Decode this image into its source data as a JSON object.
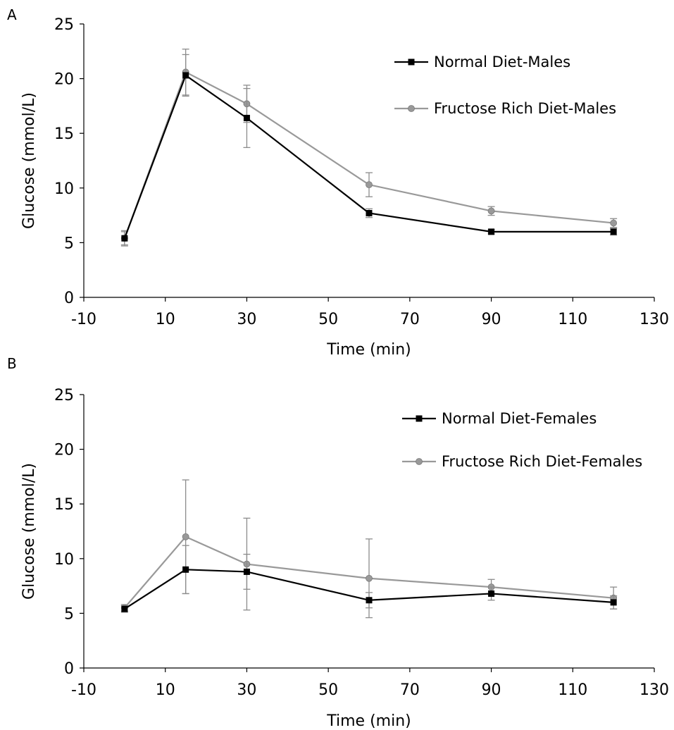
{
  "chart_data": [
    {
      "panel_label": "A",
      "type": "line",
      "xlabel": "Time (min)",
      "ylabel": "Glucose (mmol/L)",
      "xlim": [
        -10,
        130
      ],
      "ylim": [
        0,
        25
      ],
      "x_ticks": [
        -10,
        10,
        30,
        50,
        70,
        90,
        110,
        130
      ],
      "y_ticks": [
        0,
        5,
        10,
        15,
        20,
        25
      ],
      "grid": false,
      "legend_position": "top-right",
      "series": [
        {
          "name": "Normal Diet-Males",
          "color": "#000000",
          "marker": "square",
          "x": [
            0,
            15,
            30,
            60,
            90,
            120
          ],
          "y": [
            5.4,
            20.3,
            16.4,
            7.7,
            6.0,
            6.0
          ],
          "err": [
            0.7,
            1.9,
            2.7,
            0.4,
            0.2,
            0.3
          ]
        },
        {
          "name": "Fructose Rich Diet-Males",
          "color": "#999999",
          "marker": "circle",
          "x": [
            0,
            15,
            30,
            60,
            90,
            120
          ],
          "y": [
            5.4,
            20.6,
            17.7,
            10.3,
            7.9,
            6.8
          ],
          "err": [
            0.6,
            2.1,
            1.7,
            1.1,
            0.4,
            0.4
          ]
        }
      ]
    },
    {
      "panel_label": "B",
      "type": "line",
      "xlabel": "Time (min)",
      "ylabel": "Glucose (mmol/L)",
      "xlim": [
        -10,
        130
      ],
      "ylim": [
        0,
        25
      ],
      "x_ticks": [
        -10,
        10,
        30,
        50,
        70,
        90,
        110,
        130
      ],
      "y_ticks": [
        0,
        5,
        10,
        15,
        20,
        25
      ],
      "grid": false,
      "legend_position": "top-right",
      "series": [
        {
          "name": "Normal Diet-Females",
          "color": "#000000",
          "marker": "square",
          "x": [
            0,
            15,
            30,
            60,
            90,
            120
          ],
          "y": [
            5.4,
            9.0,
            8.8,
            6.2,
            6.8,
            6.0
          ],
          "err": [
            0.3,
            2.2,
            1.6,
            0.7,
            0.6,
            0.6
          ]
        },
        {
          "name": "Fructose Rich Diet-Females",
          "color": "#999999",
          "marker": "circle",
          "x": [
            0,
            15,
            30,
            60,
            90,
            120
          ],
          "y": [
            5.5,
            12.0,
            9.5,
            8.2,
            7.4,
            6.4
          ],
          "err": [
            0.3,
            5.2,
            4.2,
            3.6,
            0.7,
            1.0
          ]
        }
      ]
    }
  ]
}
